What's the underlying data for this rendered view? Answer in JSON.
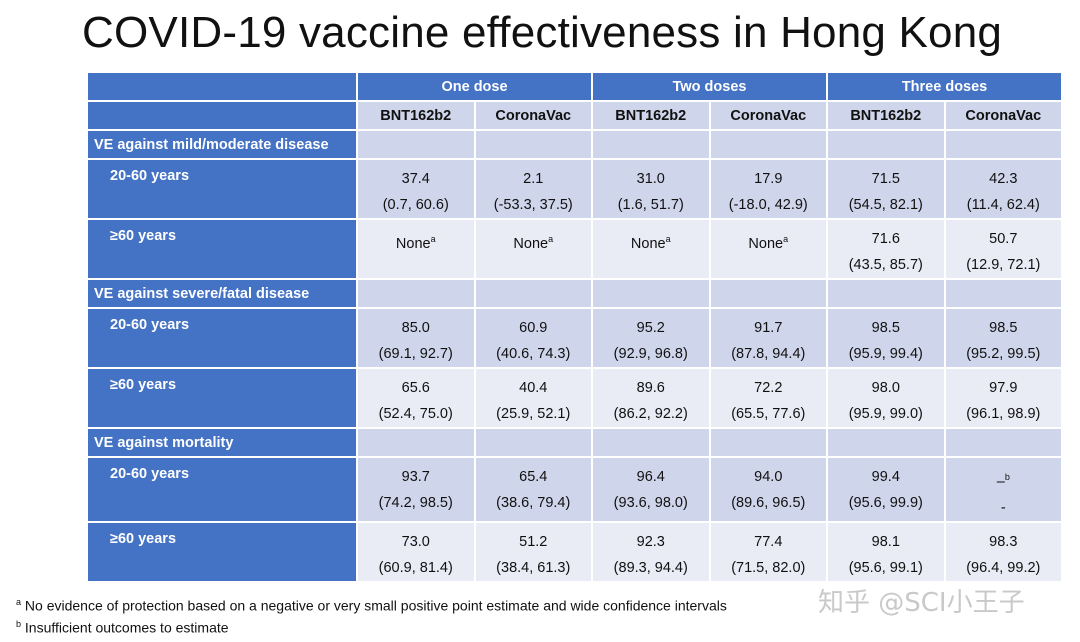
{
  "title": "COVID-19 vaccine effectiveness in Hong Kong",
  "groups": [
    "One dose",
    "Two doses",
    "Three doses"
  ],
  "vaccines": [
    "BNT162b2",
    "CoronaVac",
    "BNT162b2",
    "CoronaVac",
    "BNT162b2",
    "CoronaVac"
  ],
  "sections": [
    {
      "label": "VE against mild/moderate disease",
      "rows": [
        {
          "age": "20-60 years",
          "cells": [
            {
              "v": "37.4",
              "ci": "(0.7, 60.6)"
            },
            {
              "v": "2.1",
              "ci": "(-53.3, 37.5)"
            },
            {
              "v": "31.0",
              "ci": "(1.6, 51.7)"
            },
            {
              "v": "17.9",
              "ci": "(-18.0, 42.9)"
            },
            {
              "v": "71.5",
              "ci": "(54.5, 82.1)"
            },
            {
              "v": "42.3",
              "ci": "(11.4, 62.4)"
            }
          ]
        },
        {
          "age": "≥60 years",
          "cells": [
            {
              "v": "None",
              "sup": "a",
              "ci": ""
            },
            {
              "v": "None",
              "sup": "a",
              "ci": ""
            },
            {
              "v": "None",
              "sup": "a",
              "ci": ""
            },
            {
              "v": "None",
              "sup": "a",
              "ci": ""
            },
            {
              "v": "71.6",
              "ci": "(43.5, 85.7)"
            },
            {
              "v": "50.7",
              "ci": "(12.9, 72.1)"
            }
          ]
        }
      ]
    },
    {
      "label": "VE against severe/fatal disease",
      "rows": [
        {
          "age": "20-60 years",
          "cells": [
            {
              "v": "85.0",
              "ci": "(69.1, 92.7)"
            },
            {
              "v": "60.9",
              "ci": "(40.6, 74.3)"
            },
            {
              "v": "95.2",
              "ci": "(92.9, 96.8)"
            },
            {
              "v": "91.7",
              "ci": "(87.8, 94.4)"
            },
            {
              "v": "98.5",
              "ci": "(95.9, 99.4)"
            },
            {
              "v": "98.5",
              "ci": "(95.2, 99.5)"
            }
          ]
        },
        {
          "age": "≥60 years",
          "cells": [
            {
              "v": "65.6",
              "ci": "(52.4, 75.0)"
            },
            {
              "v": "40.4",
              "ci": "(25.9, 52.1)"
            },
            {
              "v": "89.6",
              "ci": "(86.2, 92.2)"
            },
            {
              "v": "72.2",
              "ci": "(65.5, 77.6)"
            },
            {
              "v": "98.0",
              "ci": "(95.9, 99.0)"
            },
            {
              "v": "97.9",
              "ci": "(96.1, 98.9)"
            }
          ]
        }
      ]
    },
    {
      "label": "VE against mortality",
      "rows": [
        {
          "age": "20-60 years",
          "cells": [
            {
              "v": "93.7",
              "ci": "(74.2, 98.5)"
            },
            {
              "v": "65.4",
              "ci": "(38.6, 79.4)"
            },
            {
              "v": "96.4",
              "ci": "(93.6, 98.0)"
            },
            {
              "v": "94.0",
              "ci": "(89.6, 96.5)"
            },
            {
              "v": "99.4",
              "ci": "(95.6, 99.9)"
            },
            {
              "v": "–",
              "sup": "b",
              "ci": "-"
            }
          ]
        },
        {
          "age": "≥60 years",
          "cells": [
            {
              "v": "73.0",
              "ci": "(60.9, 81.4)"
            },
            {
              "v": "51.2",
              "ci": "(38.4, 61.3)"
            },
            {
              "v": "92.3",
              "ci": "(89.3, 94.4)"
            },
            {
              "v": "77.4",
              "ci": "(71.5, 82.0)"
            },
            {
              "v": "98.1",
              "ci": "(95.6, 99.1)"
            },
            {
              "v": "98.3",
              "ci": "(96.4, 99.2)"
            }
          ]
        }
      ]
    }
  ],
  "footnotes": [
    {
      "mark": "a",
      "text": "No evidence of protection based on a negative or very small positive point estimate and wide confidence intervals"
    },
    {
      "mark": "b",
      "text": "Insufficient outcomes to estimate"
    }
  ],
  "watermark": "知乎 @SCI小王子"
}
